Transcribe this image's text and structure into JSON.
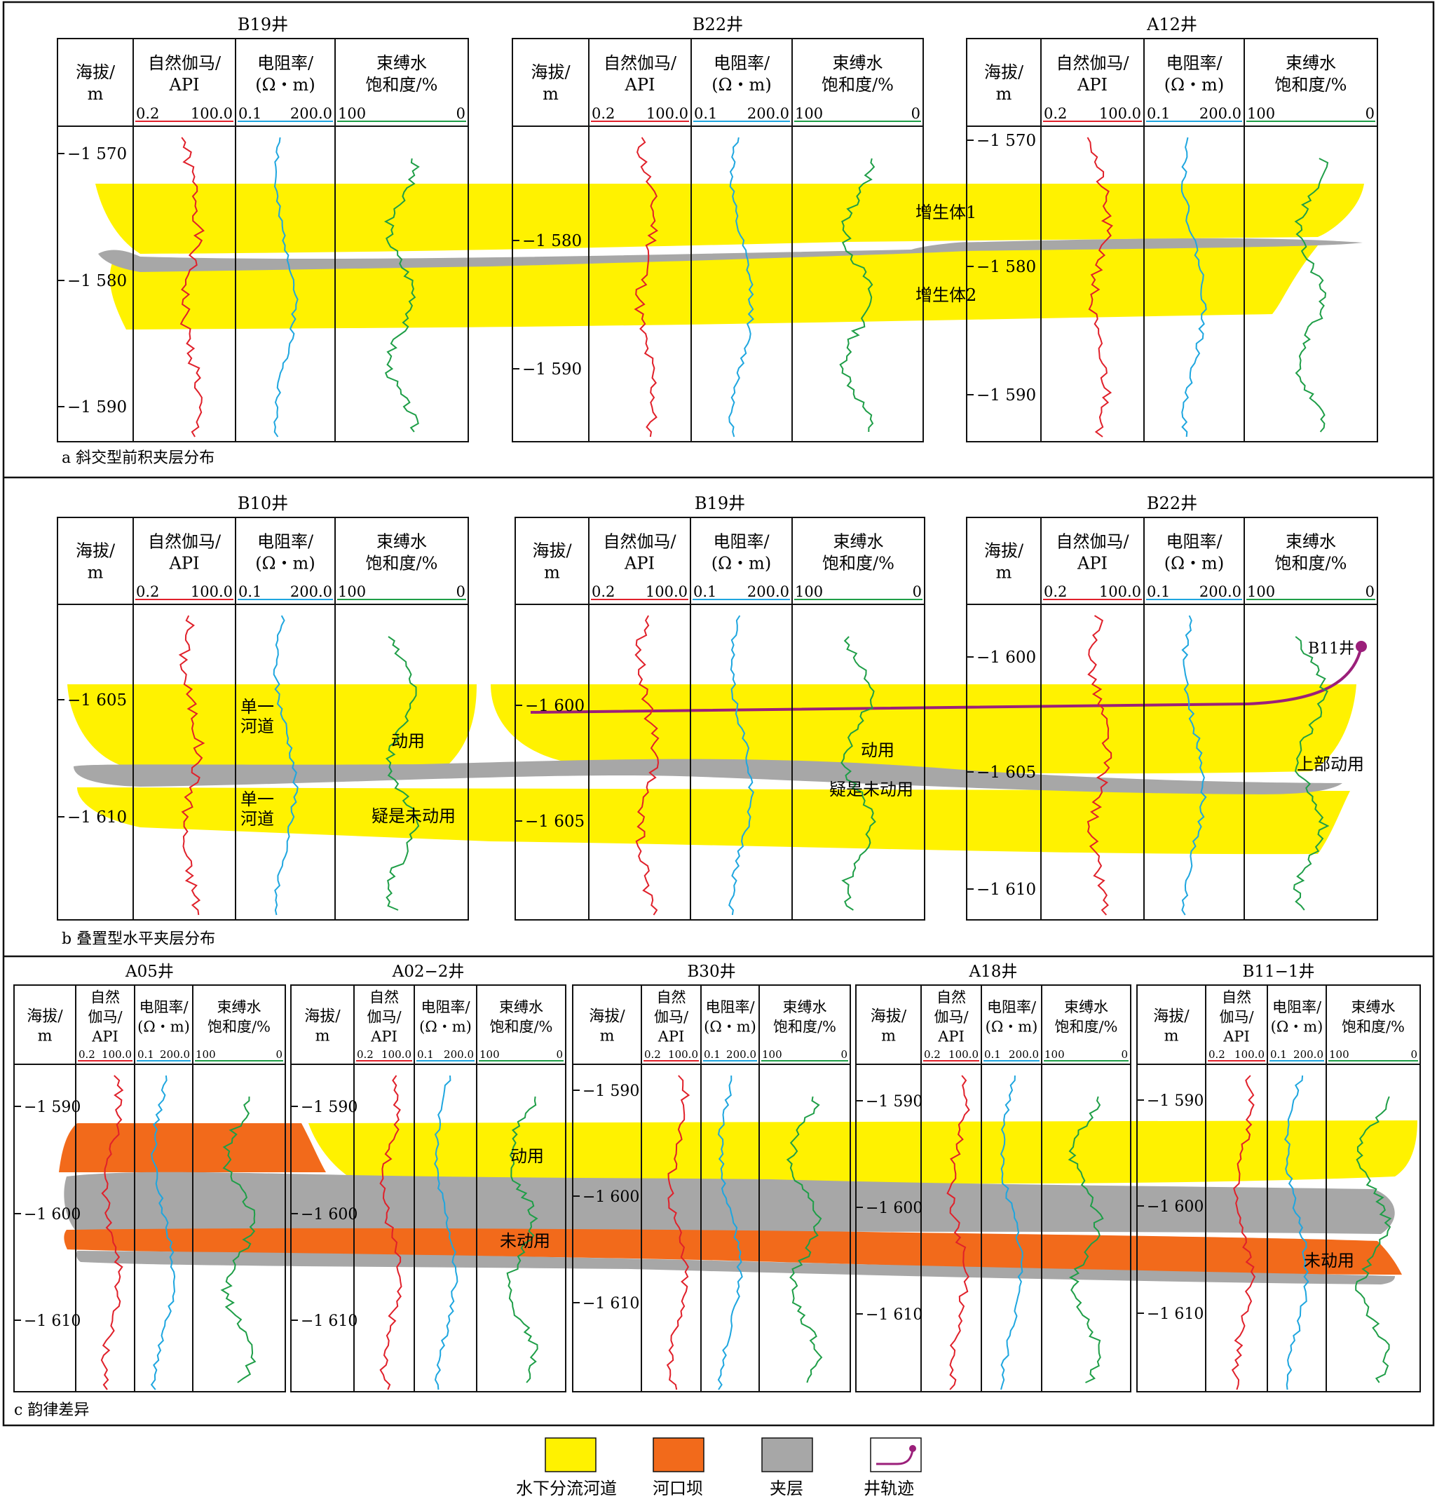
{
  "colors": {
    "channel": "#FFF200",
    "mouth_bar": "#F26A1B",
    "interlayer": "#A7A7A7",
    "trajectory": "#9B1F7A",
    "gamma_curve": "#E0202A",
    "resistivity_curve": "#1EA6DF",
    "saturation_curve": "#1E9E47",
    "frame": "#111111"
  },
  "track_headers": {
    "depth": [
      "海拔/",
      "m"
    ],
    "gamma": [
      "自然伽马/",
      "API"
    ],
    "gamma_stacked": [
      "自然",
      "伽马/",
      "API"
    ],
    "resistivity": [
      "电阻率/",
      "(Ω・m)"
    ],
    "saturation": [
      "束缚水",
      "饱和度/%"
    ],
    "gamma_scale": [
      "0.2",
      "100.0"
    ],
    "resistivity_scale": [
      "0.1",
      "200.0"
    ],
    "saturation_scale": [
      "100",
      "0"
    ]
  },
  "panels": [
    {
      "caption": "a 斜交型前积夹层分布",
      "wells": [
        {
          "name": "B19井",
          "depth_ticks": [
            "−1 570",
            "−1 580",
            "−1 590"
          ]
        },
        {
          "name": "B22井",
          "depth_ticks": [
            "−1 580",
            "−1 590"
          ]
        },
        {
          "name": "A12井",
          "depth_ticks": [
            "−1 570",
            "−1 580",
            "−1 590"
          ]
        }
      ],
      "labels": [
        "增生体1",
        "增生体2"
      ]
    },
    {
      "caption": "b 叠置型水平夹层分布",
      "wells": [
        {
          "name": "B10井",
          "depth_ticks": [
            "−1 605",
            "−1 610"
          ]
        },
        {
          "name": "B19井",
          "depth_ticks": [
            "−1 600",
            "−1 605"
          ]
        },
        {
          "name": "B22井",
          "depth_ticks": [
            "−1 600",
            "−1 605",
            "−1 610"
          ]
        }
      ],
      "labels": [
        "单一",
        "河道",
        "单一",
        "河道",
        "动用",
        "疑是未动用",
        "动用",
        "疑是未动用",
        "上部动用",
        "B11井"
      ]
    },
    {
      "caption": "c 韵律差异",
      "wells": [
        {
          "name": "A05井",
          "depth_ticks": [
            "−1 590",
            "−1 600",
            "−1 610"
          ]
        },
        {
          "name": "A02−2井",
          "depth_ticks": [
            "−1 590",
            "−1 600",
            "−1 610"
          ]
        },
        {
          "name": "B30井",
          "depth_ticks": [
            "−1 590",
            "−1 600",
            "−1 610"
          ]
        },
        {
          "name": "A18井",
          "depth_ticks": [
            "−1 590",
            "−1 600",
            "−1 610"
          ]
        },
        {
          "name": "B11−1井",
          "depth_ticks": [
            "−1 590",
            "−1 600",
            "−1 610"
          ]
        }
      ],
      "labels": [
        "动用",
        "未动用",
        "未动用"
      ]
    }
  ],
  "legend": [
    {
      "label": "水下分流河道",
      "swatch": "channel"
    },
    {
      "label": "河口坝",
      "swatch": "mouth_bar"
    },
    {
      "label": "夹层",
      "swatch": "interlayer"
    },
    {
      "label": "井轨迹",
      "swatch": "trajectory"
    }
  ]
}
